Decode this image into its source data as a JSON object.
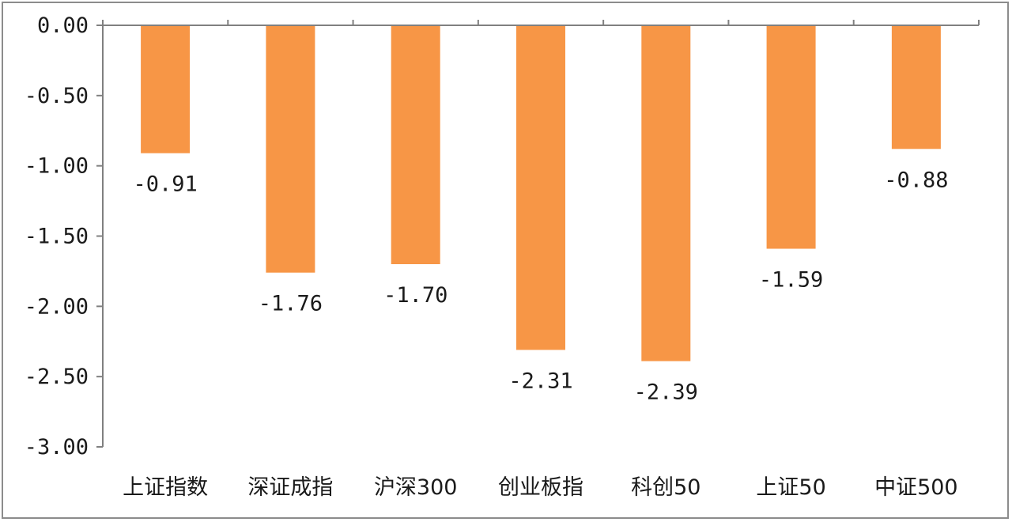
{
  "chart_data": {
    "type": "bar",
    "title": "",
    "xlabel": "",
    "ylabel": "",
    "categories": [
      "上证指数",
      "深证成指",
      "沪深300",
      "创业板指",
      "科创50",
      "上证50",
      "中证500"
    ],
    "values": [
      -0.91,
      -1.76,
      -1.7,
      -2.31,
      -2.39,
      -1.59,
      -0.88
    ],
    "data_labels": [
      "-0.91",
      "-1.76",
      "-1.70",
      "-2.31",
      "-2.39",
      "-1.59",
      "-0.88"
    ],
    "ylim": [
      -3.0,
      0.0
    ],
    "yticks": [
      0.0,
      -0.5,
      -1.0,
      -1.5,
      -2.0,
      -2.5,
      -3.0
    ],
    "ytick_labels": [
      "0.00",
      "-0.50",
      "-1.00",
      "-1.50",
      "-2.00",
      "-2.50",
      "-3.00"
    ],
    "bar_color": "#f79646",
    "grid": false,
    "legend": "none"
  }
}
